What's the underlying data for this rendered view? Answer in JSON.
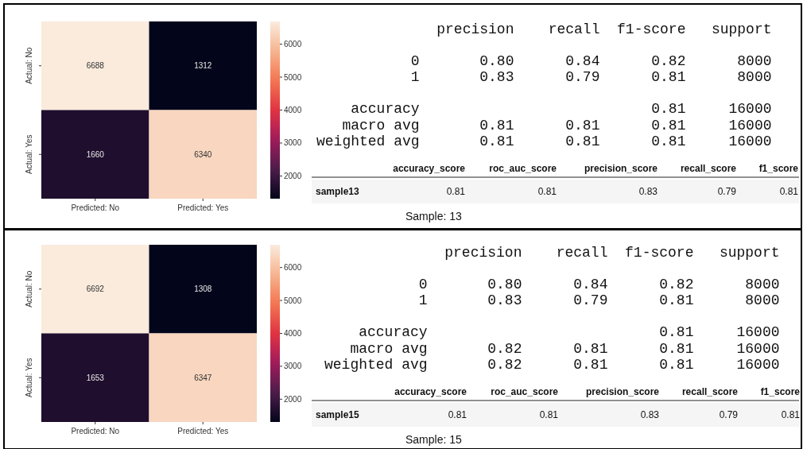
{
  "chart_data": [
    {
      "type": "heatmap",
      "categories": [
        "Predicted: No",
        "Predicted: Yes"
      ],
      "y_categories": [
        "Actual: No",
        "Actual: Yes"
      ],
      "cells": [
        [
          6688,
          1312
        ],
        [
          1660,
          6340
        ]
      ],
      "clim": [
        1312,
        6688
      ],
      "cticks": [
        2000,
        3000,
        4000,
        5000,
        6000
      ],
      "data_labels": true
    },
    {
      "type": "other",
      "annotations": [
        "              precision    recall  f1-score   support",
        "           0       0.80      0.84      0.82      8000",
        "           1       0.83      0.79      0.81      8000",
        "    accuracy                           0.81     16000",
        "   macro avg       0.81      0.81      0.81     16000",
        "weighted avg       0.81      0.81      0.81     16000",
        "accuracy_score",
        "roc_auc_score",
        "precision_score",
        "recall_score",
        "f1_score",
        "sample13",
        "0.81",
        "0.81",
        "0.83",
        "0.79",
        "0.81",
        "Sample: 13"
      ]
    },
    {
      "type": "heatmap",
      "categories": [
        "Predicted: No",
        "Predicted: Yes"
      ],
      "y_categories": [
        "Actual: No",
        "Actual: Yes"
      ],
      "cells": [
        [
          6692,
          1308
        ],
        [
          1653,
          6347
        ]
      ],
      "clim": [
        1308,
        6692
      ],
      "cticks": [
        2000,
        3000,
        4000,
        5000,
        6000
      ],
      "data_labels": true
    },
    {
      "type": "other",
      "annotations": [
        "              precision    recall  f1-score   support",
        "           0       0.80      0.84      0.82      8000",
        "           1       0.83      0.79      0.81      8000",
        "    accuracy                           0.81     16000",
        "   macro avg       0.82      0.81      0.81     16000",
        "weighted avg       0.82      0.81      0.81     16000",
        "accuracy_score",
        "roc_auc_score",
        "precision_score",
        "recall_score",
        "f1_score",
        "sample15",
        "0.81",
        "0.81",
        "0.83",
        "0.79",
        "0.81",
        "Sample: 15"
      ]
    }
  ]
}
